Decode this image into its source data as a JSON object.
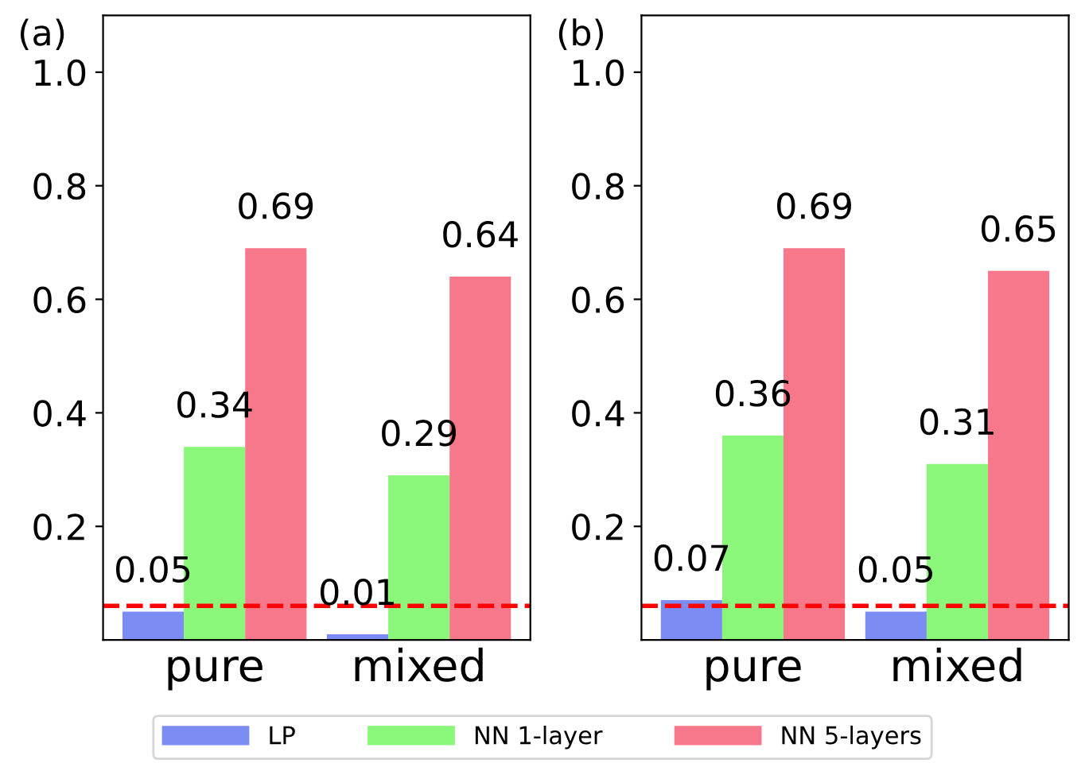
{
  "chart_data": [
    {
      "type": "bar",
      "title": "(a)",
      "categories": [
        "pure",
        "mixed"
      ],
      "series": [
        {
          "name": "LP",
          "color": "#7b8cf2",
          "values": [
            0.05,
            0.01
          ]
        },
        {
          "name": "NN 1-layer",
          "color": "#8af77a",
          "values": [
            0.34,
            0.29
          ]
        },
        {
          "name": "NN 5-layers",
          "color": "#f7778b",
          "values": [
            0.69,
            0.64
          ]
        }
      ],
      "ylim": [
        0,
        1.1
      ],
      "yticks": [
        0.2,
        0.4,
        0.6,
        0.8,
        {
          "value": 1,
          "label": "1.0"
        }
      ],
      "data_labels": true,
      "grid": false,
      "legend": "bottom",
      "ref_lines": [
        {
          "axis": "y",
          "value": 0.06,
          "color": "#ff0000",
          "line_style": "dashed"
        }
      ]
    },
    {
      "type": "bar",
      "title": "(b)",
      "categories": [
        "pure",
        "mixed"
      ],
      "series": [
        {
          "color": "#7b8cf2",
          "values": [
            0.07,
            0.05
          ]
        },
        {
          "color": "#8af77a",
          "values": [
            0.36,
            0.31
          ]
        },
        {
          "color": "#f7778b",
          "values": [
            0.69,
            0.65
          ]
        }
      ],
      "ylim": [
        0,
        1.1
      ],
      "yticks": [
        0.2,
        0.4,
        0.6,
        0.8,
        {
          "value": 1,
          "label": "1.0"
        }
      ],
      "data_labels": true,
      "grid": false,
      "ref_lines": [
        {
          "axis": "y",
          "value": 0.06,
          "color": "#ff0000",
          "line_style": "dashed"
        }
      ]
    }
  ]
}
